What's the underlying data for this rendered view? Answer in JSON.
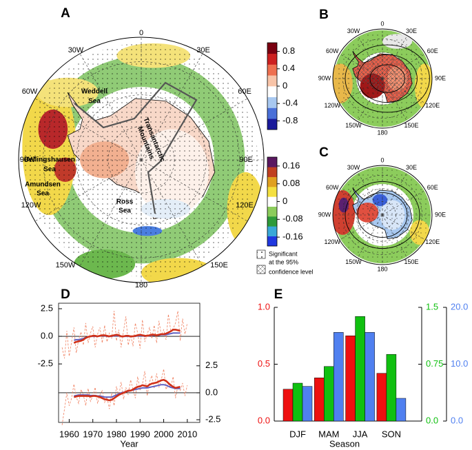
{
  "chart_data": [
    {
      "type": "map",
      "title": "A",
      "lon_labels": [
        "0",
        "30E",
        "60E",
        "90E",
        "120E",
        "150E",
        "180",
        "150W",
        "120W",
        "90W",
        "60W",
        "30W"
      ],
      "region_labels": [
        "Weddell",
        "Sea",
        "Bellingshausen",
        "Sea",
        "Amundsen",
        "Sea",
        "Ross",
        "Sea",
        "Transantarctic",
        "Mountains"
      ],
      "colorbars": [
        {
          "lim": [
            -1.0,
            1.0
          ],
          "ticks": [
            0.8,
            0.4,
            0,
            -0.4,
            -0.8
          ],
          "colors": [
            "#1a1a9a",
            "#4a70d8",
            "#a8c8f0",
            "#ffffff",
            "#f8c4a8",
            "#ee7050",
            "#cc2020",
            "#7a0010"
          ]
        },
        {
          "lim": [
            -0.2,
            0.2
          ],
          "ticks": [
            0.16,
            0.08,
            0,
            -0.08,
            -0.16
          ],
          "colors": [
            "#2038e0",
            "#3aa8d8",
            "#2e9a3a",
            "#8ccc5c",
            "#ffffff",
            "#f4e040",
            "#e0a020",
            "#c04020",
            "#5a1860"
          ]
        }
      ],
      "legend": [
        "Significant",
        "at the 95%",
        "confidence level"
      ]
    },
    {
      "type": "map",
      "title": "B",
      "lon_labels": [
        "0",
        "30E",
        "60E",
        "90E",
        "120E",
        "150E",
        "180",
        "150W",
        "120W",
        "90W",
        "60W",
        "30W"
      ]
    },
    {
      "type": "map",
      "title": "C",
      "lon_labels": [
        "0",
        "30E",
        "60E",
        "90E",
        "120E",
        "150E",
        "180",
        "150W",
        "120W",
        "90W",
        "60W",
        "30W"
      ]
    },
    {
      "type": "line",
      "title": "D",
      "x_label": "Year",
      "x": [
        1957,
        1958,
        1959,
        1960,
        1961,
        1962,
        1963,
        1964,
        1965,
        1966,
        1967,
        1968,
        1969,
        1970,
        1971,
        1972,
        1973,
        1974,
        1975,
        1976,
        1977,
        1978,
        1979,
        1980,
        1981,
        1982,
        1983,
        1984,
        1985,
        1986,
        1987,
        1988,
        1989,
        1990,
        1991,
        1992,
        1993,
        1994,
        1995,
        1996,
        1997,
        1998,
        1999,
        2000,
        2001,
        2002,
        2003,
        2004,
        2005,
        2006,
        2007,
        2008,
        2009,
        2010
      ],
      "xlim": [
        1955.5,
        2015.3
      ],
      "xticks": [
        1960,
        1970,
        1980,
        1990,
        2000,
        2010
      ],
      "ylim": [
        -7.8,
        3.0
      ],
      "yticks": [
        2.5,
        {
          "value": 0,
          "label": "0.0"
        },
        -2.5
      ],
      "y2lim": [
        -2.75,
        8.3
      ],
      "y2ticks": [
        2.5,
        {
          "value": 0,
          "label": "0.0"
        },
        -2.5
      ],
      "series": [
        {
          "color": "#f08060",
          "style": "dashed",
          "axis": "y",
          "values": [
            -1.0,
            -2.0,
            0.5,
            -1.8,
            -0.5,
            0.8,
            -1.5,
            -0.3,
            0.4,
            -0.8,
            1.2,
            -0.6,
            0.3,
            0.9,
            -1.0,
            0.2,
            0.8,
            -0.6,
            1.0,
            -0.5,
            0.3,
            -0.2,
            2.3,
            -0.4,
            0.6,
            -1.0,
            0.5,
            1.8,
            -0.8,
            0.1,
            -0.9,
            1.2,
            0.3,
            -1.1,
            1.5,
            -0.5,
            0.2,
            0.8,
            -0.2,
            1.0,
            -0.6,
            1.4,
            0.1,
            0.6,
            -0.3,
            2.0,
            0.5,
            0.7,
            1.2,
            2.3,
            -0.4,
            1.6,
            0.2,
            1.2
          ]
        },
        {
          "color": "#6060c0",
          "style": "solid",
          "axis": "y",
          "values": [
            null,
            null,
            null,
            null,
            null,
            -0.35,
            -0.3,
            -0.3,
            -0.25,
            -0.2,
            -0.1,
            -0.05,
            0.0,
            0.0,
            0.0,
            0.0,
            0.05,
            0.05,
            0.05,
            0.0,
            0.0,
            0.0,
            0.05,
            0.05,
            0.05,
            0.0,
            0.0,
            0.0,
            0.0,
            0.0,
            0.0,
            0.0,
            0.05,
            0.05,
            0.05,
            0.0,
            0.05,
            0.05,
            0.1,
            0.1,
            0.1,
            0.1,
            0.15,
            0.15,
            0.15,
            0.2,
            0.25,
            0.3,
            0.3,
            0.3,
            0.3,
            null,
            null,
            null
          ]
        },
        {
          "color": "#d03018",
          "style": "thick",
          "axis": "y",
          "values": [
            null,
            null,
            null,
            null,
            null,
            -0.6,
            -0.5,
            -0.45,
            -0.4,
            -0.3,
            -0.15,
            -0.05,
            0.0,
            0.05,
            0.05,
            0.0,
            0.05,
            0.1,
            0.1,
            0.05,
            0.0,
            0.05,
            0.1,
            0.15,
            0.1,
            0.0,
            0.0,
            0.05,
            0.05,
            0.0,
            0.0,
            0.05,
            0.1,
            0.15,
            0.1,
            0.05,
            0.05,
            0.1,
            0.15,
            0.15,
            0.1,
            0.15,
            0.2,
            0.2,
            0.25,
            0.35,
            0.45,
            0.6,
            0.6,
            0.55,
            0.5,
            null,
            null,
            null
          ]
        },
        {
          "color": "#f08060",
          "style": "dashed",
          "axis": "y2",
          "values": [
            -3.0,
            -1.5,
            0.0,
            -1.2,
            -0.5,
            0.8,
            -0.4,
            -1.0,
            0.3,
            -0.2,
            -1.2,
            0.4,
            -0.8,
            -0.3,
            0.5,
            -1.0,
            -0.2,
            0.2,
            -0.9,
            -0.4,
            -1.5,
            0.0,
            -1.2,
            0.6,
            -0.3,
            1.0,
            -0.6,
            0.5,
            -0.2,
            1.2,
            0.3,
            -0.5,
            1.5,
            0.2,
            0.8,
            2.0,
            -0.3,
            1.0,
            1.6,
            0.4,
            1.8,
            0.5,
            1.2,
            2.2,
            0.3,
            0.8,
            0.5,
            1.5,
            -0.5,
            0.6,
            0.2,
            0.9,
            -0.3,
            0.7
          ]
        },
        {
          "color": "#6060c0",
          "style": "solid",
          "axis": "y2",
          "values": [
            null,
            null,
            null,
            null,
            null,
            -0.3,
            -0.25,
            -0.2,
            -0.2,
            -0.2,
            -0.2,
            -0.2,
            -0.25,
            -0.25,
            -0.25,
            -0.3,
            -0.3,
            -0.35,
            -0.4,
            -0.4,
            -0.4,
            -0.4,
            -0.3,
            -0.2,
            -0.1,
            0.0,
            0.05,
            0.1,
            0.15,
            0.2,
            0.25,
            0.3,
            0.35,
            0.4,
            0.45,
            0.45,
            0.45,
            0.5,
            0.55,
            0.6,
            0.65,
            0.7,
            0.75,
            0.75,
            0.7,
            0.6,
            0.5,
            0.45,
            0.4,
            0.4,
            0.4,
            null,
            null,
            null
          ]
        },
        {
          "color": "#d03018",
          "style": "thick",
          "axis": "y2",
          "values": [
            null,
            null,
            null,
            null,
            null,
            -0.4,
            -0.35,
            -0.3,
            -0.3,
            -0.3,
            -0.3,
            -0.3,
            -0.35,
            -0.3,
            -0.3,
            -0.35,
            -0.4,
            -0.5,
            -0.6,
            -0.65,
            -0.7,
            -0.65,
            -0.5,
            -0.35,
            -0.2,
            -0.1,
            0.0,
            0.1,
            0.2,
            0.2,
            0.3,
            0.45,
            0.55,
            0.6,
            0.7,
            0.65,
            0.6,
            0.75,
            0.85,
            0.9,
            0.95,
            1.05,
            1.15,
            1.2,
            1.1,
            0.9,
            0.7,
            0.55,
            0.45,
            0.5,
            0.55,
            null,
            null,
            null
          ]
        }
      ]
    },
    {
      "type": "bar",
      "title": "E",
      "x_label": "Season",
      "categories": [
        "DJF",
        "MAM",
        "JJA",
        "SON"
      ],
      "ylim": [
        0,
        1.0
      ],
      "yticks": [
        {
          "value": 0,
          "label": "0.0"
        },
        0.5,
        {
          "value": 1.0,
          "label": "1.0"
        }
      ],
      "y2lim": [
        0,
        1.5
      ],
      "y2ticks": [
        {
          "value": 0,
          "label": "0.0"
        },
        0.75,
        1.5
      ],
      "y3lim": [
        0,
        20
      ],
      "y3ticks": [
        {
          "value": 0,
          "label": "0.0"
        },
        {
          "value": 10,
          "label": "10.0"
        },
        {
          "value": 20,
          "label": "20.0"
        }
      ],
      "series": [
        {
          "color": "#ee1010",
          "axis": "y",
          "values": [
            0.28,
            0.38,
            0.75,
            0.42
          ]
        },
        {
          "color": "#10c010",
          "axis": "y2",
          "values": [
            0.5,
            0.72,
            1.38,
            0.88
          ]
        },
        {
          "color": "#5080f0",
          "axis": "y3",
          "values": [
            6.1,
            15.6,
            15.6,
            4.0
          ]
        }
      ]
    }
  ]
}
